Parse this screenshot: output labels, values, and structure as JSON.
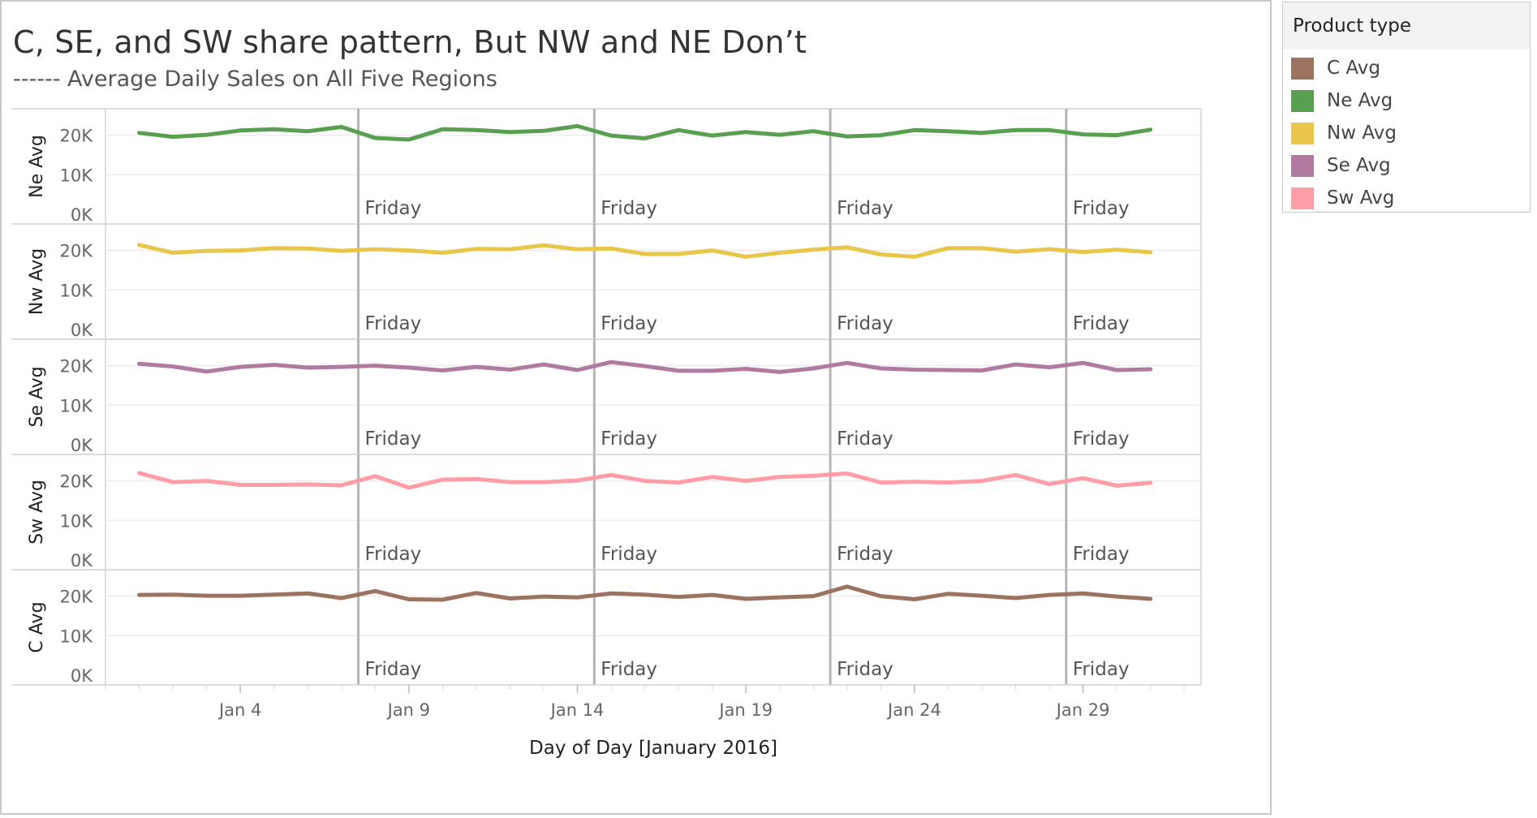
{
  "title": "C, SE, and SW share pattern, But NW and NE Don’t",
  "subtitle": "------ Average Daily Sales on All Five Regions",
  "legend": {
    "title": "Product type",
    "items": [
      {
        "label": "C Avg",
        "color": "#9c735f"
      },
      {
        "label": "Ne Avg",
        "color": "#58a04f"
      },
      {
        "label": "Nw Avg",
        "color": "#e9c64a"
      },
      {
        "label": "Se Avg",
        "color": "#b07aa1"
      },
      {
        "label": "Sw Avg",
        "color": "#ff9da7"
      }
    ]
  },
  "chart_data": {
    "type": "line",
    "title": "C, SE, and SW share pattern, But NW and NE Don’t",
    "subtitle": "------ Average Daily Sales on All Five Regions",
    "xlabel": "Day of Day [January 2016]",
    "x": [
      1,
      2,
      3,
      4,
      5,
      6,
      7,
      8,
      9,
      10,
      11,
      12,
      13,
      14,
      15,
      16,
      17,
      18,
      19,
      20,
      21,
      22,
      23,
      24,
      25,
      26,
      27,
      28,
      29,
      30,
      31
    ],
    "x_tick_values": [
      4,
      9,
      14,
      19,
      24,
      29
    ],
    "x_tick_labels": [
      "Jan 4",
      "Jan 9",
      "Jan 14",
      "Jan 19",
      "Jan 24",
      "Jan 29"
    ],
    "y_ticks": [
      0,
      10000,
      20000
    ],
    "y_tick_labels": [
      "0K",
      "10K",
      "20K"
    ],
    "ylim": [
      0,
      23000
    ],
    "grid": true,
    "reference_lines": {
      "x": [
        8,
        15,
        22,
        29
      ],
      "label": "Friday"
    },
    "reference_label": "Friday",
    "series": [
      {
        "name": "Ne Avg",
        "color": "#58a04f",
        "values": [
          20600,
          19600,
          20100,
          21200,
          21500,
          21000,
          22100,
          19300,
          18900,
          21500,
          21300,
          20800,
          21100,
          22300,
          19900,
          19200,
          21300,
          19900,
          20800,
          20100,
          21000,
          19700,
          20000,
          21300,
          21000,
          20600,
          21300,
          21300,
          20200,
          20000,
          21400
        ]
      },
      {
        "name": "Nw Avg",
        "color": "#e9c64a",
        "values": [
          21400,
          19400,
          19900,
          20000,
          20600,
          20500,
          19900,
          20300,
          20000,
          19400,
          20400,
          20300,
          21300,
          20300,
          20500,
          19100,
          19100,
          20000,
          18400,
          19400,
          20200,
          20800,
          19000,
          18400,
          20600,
          20600,
          19700,
          20300,
          19600,
          20200,
          19500
        ]
      },
      {
        "name": "Se Avg",
        "color": "#b07aa1",
        "values": [
          20500,
          19800,
          18500,
          19700,
          20200,
          19500,
          19700,
          20000,
          19500,
          18800,
          19700,
          19000,
          20300,
          18900,
          20900,
          19900,
          18700,
          18700,
          19200,
          18400,
          19300,
          20700,
          19300,
          19000,
          18900,
          18800,
          20300,
          19600,
          20700,
          18900,
          19100
        ]
      },
      {
        "name": "Sw Avg",
        "color": "#ff9da7",
        "values": [
          22000,
          19700,
          20000,
          19000,
          19000,
          19100,
          18900,
          21200,
          18300,
          20300,
          20500,
          19700,
          19700,
          20100,
          21500,
          20000,
          19600,
          21000,
          20000,
          21000,
          21300,
          21900,
          19600,
          19800,
          19600,
          20000,
          21500,
          19200,
          20700,
          18800,
          19500
        ]
      },
      {
        "name": "C Avg",
        "color": "#9c735f",
        "values": [
          20300,
          20400,
          20100,
          20100,
          20400,
          20700,
          19500,
          21300,
          19200,
          19100,
          20800,
          19400,
          19900,
          19700,
          20700,
          20400,
          19800,
          20300,
          19300,
          19700,
          20000,
          22400,
          20000,
          19200,
          20600,
          20100,
          19500,
          20300,
          20700,
          19900,
          19300
        ]
      }
    ]
  }
}
